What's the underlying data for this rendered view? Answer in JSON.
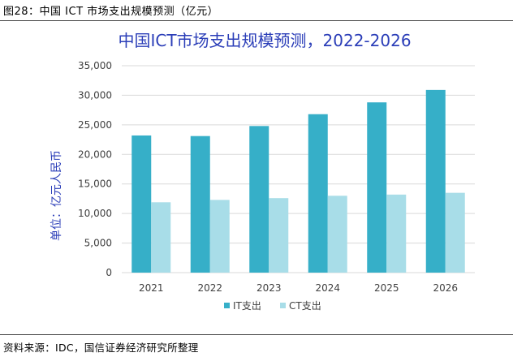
{
  "figure_label": "图28：中国 ICT 市场支出规模预测（亿元）",
  "source": "资料来源：IDC，国信证券经济研究所整理",
  "colors": {
    "it": "#36afc8",
    "ct": "#a8dde8",
    "title": "#2b3eb8",
    "grid": "#d9d9d9"
  },
  "chart_data": {
    "type": "bar",
    "title": "中国ICT市场支出规模预测，2022-2026",
    "xlabel": "",
    "ylabel": "单位：亿元人民币",
    "categories": [
      "2021",
      "2022",
      "2023",
      "2024",
      "2025",
      "2026"
    ],
    "series": [
      {
        "name": "IT支出",
        "values": [
          23200,
          23100,
          24800,
          26800,
          28800,
          30900
        ]
      },
      {
        "name": "CT支出",
        "values": [
          11900,
          12300,
          12600,
          13000,
          13200,
          13500
        ]
      }
    ],
    "ylim": [
      0,
      35000
    ],
    "yticks": [
      "0",
      "5,000",
      "10,000",
      "15,000",
      "20,000",
      "25,000",
      "30,000",
      "35,000"
    ],
    "ytick_values": [
      0,
      5000,
      10000,
      15000,
      20000,
      25000,
      30000,
      35000
    ],
    "grid": true,
    "legend_position": "bottom"
  }
}
